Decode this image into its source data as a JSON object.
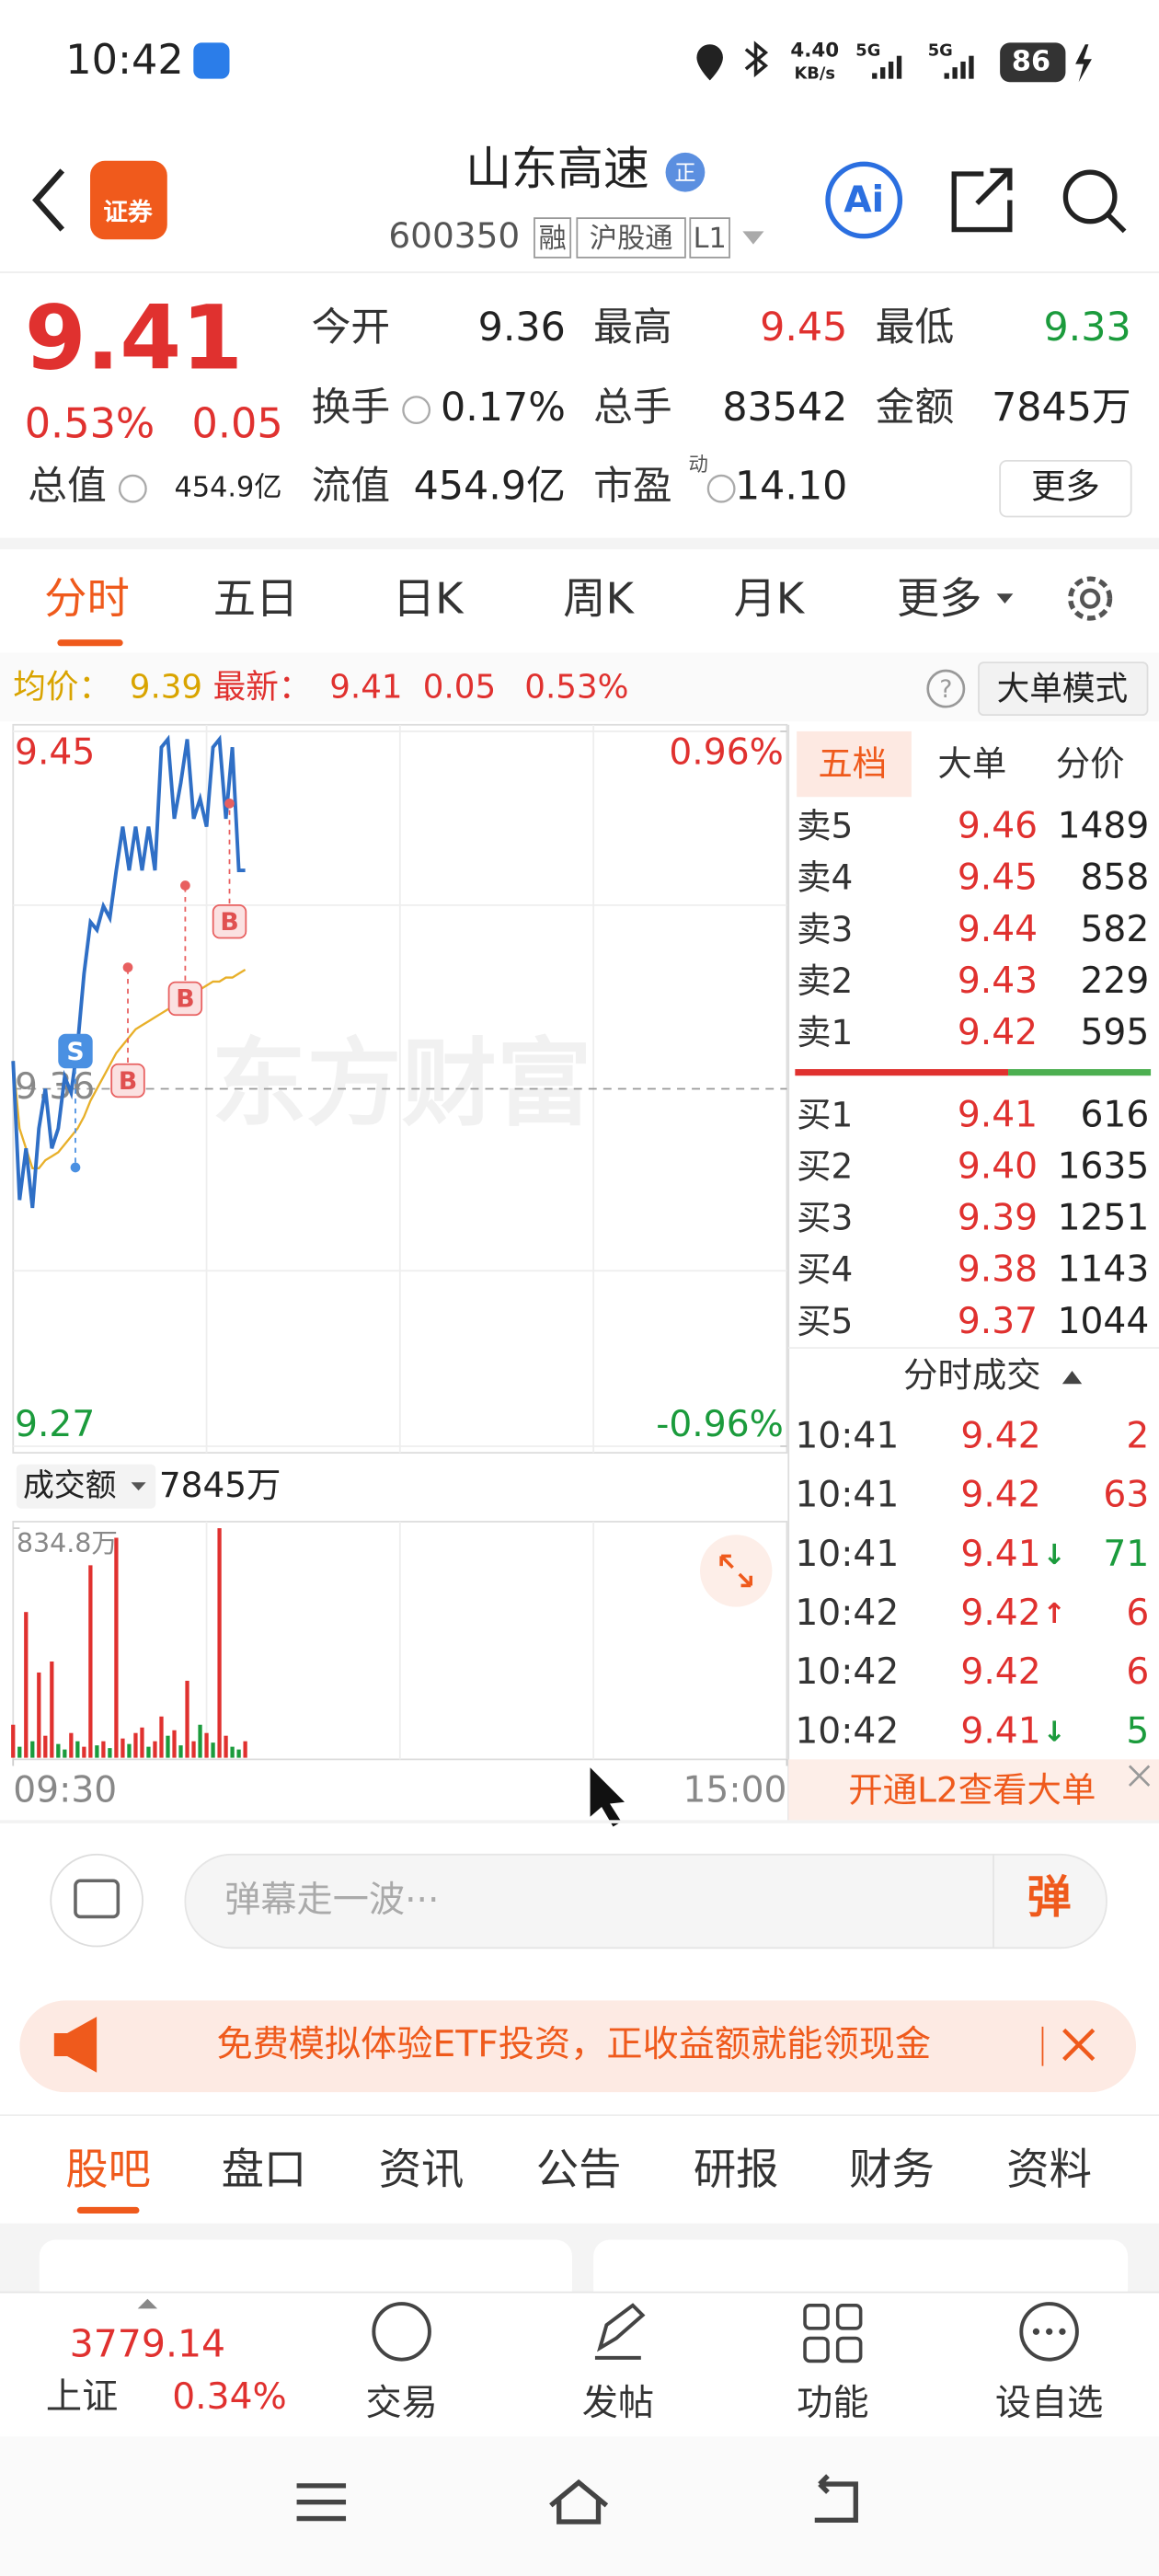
{
  "status_bar": {
    "time": "10:42",
    "net_speed": "4.40",
    "net_unit": "KB/s",
    "signal_1": "5G",
    "signal_2": "5G",
    "battery": "86"
  },
  "header": {
    "logo": "证券",
    "title": "山东高速",
    "badge": "正",
    "code": "600350",
    "tags": [
      "融",
      "沪股通",
      "L1"
    ],
    "ai": "Ai"
  },
  "quote": {
    "price": "9.41",
    "change_pct": "0.53%",
    "change": "0.05",
    "stats": [
      {
        "label": "今开",
        "value": "9.36"
      },
      {
        "label": "最高",
        "value": "9.45",
        "color": "#e0312f"
      },
      {
        "label": "最低",
        "value": "9.33",
        "color": "#1b9b3c"
      },
      {
        "label": "换手",
        "value": "0.17%"
      },
      {
        "label": "总手",
        "value": "83542"
      },
      {
        "label": "金额",
        "value": "7845万"
      },
      {
        "label": "总值",
        "value": "454.9亿"
      },
      {
        "label": "流值",
        "value": "454.9亿"
      },
      {
        "label": "市盈",
        "value": "14.10",
        "tag": "动"
      }
    ],
    "more": "更多"
  },
  "chart_tabs": [
    "分时",
    "五日",
    "日K",
    "周K",
    "月K",
    "更多"
  ],
  "info_line": {
    "avg_label": "均价：",
    "avg": "9.39",
    "latest_label": "最新：",
    "latest": "9.41",
    "change": "0.05",
    "change_pct": "0.53%",
    "help": "?",
    "mode_button": "大单模式"
  },
  "chart_data": {
    "type": "line",
    "watermark": "东方财富",
    "x": [
      0,
      2,
      4,
      6,
      8,
      10,
      12,
      14,
      16,
      18,
      20,
      22,
      24,
      26,
      28,
      30,
      32,
      34,
      36,
      38,
      40,
      42,
      44,
      46,
      48,
      50,
      52,
      54,
      56,
      58,
      60,
      62,
      64,
      66,
      68,
      70,
      72
    ],
    "xlim": [
      0,
      240
    ],
    "xticks": [
      {
        "value": 0,
        "label": "09:30"
      },
      {
        "value": 240,
        "label": "15:00"
      }
    ],
    "ylim": [
      9.27,
      9.45
    ],
    "yticks": [
      9.45,
      9.36,
      9.27
    ],
    "y2lim": [
      -0.96,
      0.96
    ],
    "y2ticks": [
      {
        "value": 0.96,
        "label": "0.96%"
      },
      {
        "value": -0.96,
        "label": "-0.96%"
      }
    ],
    "series": [
      {
        "name": "最新",
        "color": "#2f6fc6",
        "values": [
          9.367,
          9.332,
          9.345,
          9.33,
          9.35,
          9.36,
          9.345,
          9.35,
          9.363,
          9.359,
          9.371,
          9.389,
          9.402,
          9.4,
          9.406,
          9.403,
          9.415,
          9.426,
          9.415,
          9.426,
          9.415,
          9.426,
          9.415,
          9.446,
          9.448,
          9.428,
          9.437,
          9.448,
          9.428,
          9.433,
          9.426,
          9.446,
          9.448,
          9.428,
          9.446,
          9.415,
          9.415
        ]
      },
      {
        "name": "均价",
        "color": "#e8b02a",
        "values": [
          9.367,
          9.35,
          9.345,
          9.34,
          9.34,
          9.342,
          9.343,
          9.344,
          9.346,
          9.348,
          9.35,
          9.353,
          9.357,
          9.36,
          9.363,
          9.366,
          9.369,
          9.371,
          9.373,
          9.375,
          9.376,
          9.377,
          9.378,
          9.379,
          9.38,
          9.381,
          9.382,
          9.383,
          9.384,
          9.385,
          9.386,
          9.387,
          9.387,
          9.388,
          9.388,
          9.389,
          9.39
        ]
      }
    ],
    "markers": [
      "S",
      "B",
      "B",
      "B"
    ],
    "volume": {
      "label": "成交额",
      "total": "7845万",
      "ylim": [
        0,
        834.8
      ],
      "yticks": [
        {
          "value": 834.8,
          "label": "834.8万"
        }
      ],
      "values": [
        120,
        40,
        530,
        60,
        310,
        80,
        350,
        50,
        30,
        90,
        60,
        40,
        700,
        45,
        60,
        35,
        800,
        70,
        50,
        90,
        110,
        40,
        60,
        150,
        80,
        100,
        45,
        280,
        60,
        120,
        90,
        55,
        834.8,
        80,
        40,
        30,
        60
      ],
      "colors": [
        "#e0312f",
        "#1b9b3c",
        "#e0312f",
        "#1b9b3c",
        "#e0312f",
        "#e0312f",
        "#e0312f",
        "#1b9b3c",
        "#1b9b3c",
        "#e0312f",
        "#1b9b3c",
        "#e0312f",
        "#e0312f",
        "#1b9b3c",
        "#e0312f",
        "#1b9b3c",
        "#e0312f",
        "#e0312f",
        "#1b9b3c",
        "#e0312f",
        "#e0312f",
        "#1b9b3c",
        "#e0312f",
        "#e0312f",
        "#1b9b3c",
        "#e0312f",
        "#1b9b3c",
        "#e0312f",
        "#e0312f",
        "#1b9b3c",
        "#e0312f",
        "#1b9b3c",
        "#e0312f",
        "#e0312f",
        "#1b9b3c",
        "#1b9b3c",
        "#e0312f"
      ]
    }
  },
  "order_book": {
    "tabs": [
      "五档",
      "大单",
      "分价"
    ],
    "asks": [
      {
        "label": "卖5",
        "price": "9.46",
        "volume": "1489"
      },
      {
        "label": "卖4",
        "price": "9.45",
        "volume": "858"
      },
      {
        "label": "卖3",
        "price": "9.44",
        "volume": "582"
      },
      {
        "label": "卖2",
        "price": "9.43",
        "volume": "229"
      },
      {
        "label": "卖1",
        "price": "9.42",
        "volume": "595"
      }
    ],
    "bids": [
      {
        "label": "买1",
        "price": "9.41",
        "volume": "616"
      },
      {
        "label": "买2",
        "price": "9.40",
        "volume": "1635"
      },
      {
        "label": "买3",
        "price": "9.39",
        "volume": "1251"
      },
      {
        "label": "买4",
        "price": "9.38",
        "volume": "1143"
      },
      {
        "label": "买5",
        "price": "9.37",
        "volume": "1044"
      }
    ]
  },
  "trades": {
    "title": "分时成交",
    "rows": [
      {
        "time": "10:41",
        "price": "9.42",
        "volume": "2",
        "color": "#e0312f"
      },
      {
        "time": "10:41",
        "price": "9.42",
        "volume": "63",
        "color": "#e0312f"
      },
      {
        "time": "10:41",
        "price": "9.41",
        "dir": "↓",
        "volume": "71",
        "color": "#1b9b3c"
      },
      {
        "time": "10:42",
        "price": "9.42",
        "dir": "↑",
        "volume": "6",
        "color": "#e0312f"
      },
      {
        "time": "10:42",
        "price": "9.42",
        "volume": "6",
        "color": "#e0312f"
      },
      {
        "time": "10:42",
        "price": "9.41",
        "dir": "↓",
        "volume": "5",
        "color": "#1b9b3c"
      }
    ],
    "l2_banner": "开通L2查看大单"
  },
  "danmaku": {
    "placeholder": "弹幕走一波···",
    "send": "弹"
  },
  "promo": "免费模拟体验ETF投资，正收益额就能领现金",
  "content_tabs": [
    "股吧",
    "盘口",
    "资讯",
    "公告",
    "研报",
    "财务",
    "资料"
  ],
  "bottom_nav": {
    "index": {
      "value": "3779.14",
      "name": "上证",
      "change": "0.34%"
    },
    "items": [
      "交易",
      "发帖",
      "功能",
      "设自选"
    ]
  }
}
